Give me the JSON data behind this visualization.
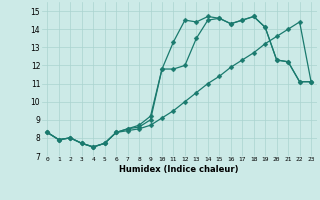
{
  "xlabel": "Humidex (Indice chaleur)",
  "background_color": "#cceae7",
  "grid_color": "#aad4d0",
  "line_color": "#1a7a6e",
  "xlim": [
    -0.5,
    23.5
  ],
  "ylim": [
    7.0,
    15.5
  ],
  "yticks": [
    7,
    8,
    9,
    10,
    11,
    12,
    13,
    14,
    15
  ],
  "xticks": [
    0,
    1,
    2,
    3,
    4,
    5,
    6,
    7,
    8,
    9,
    10,
    11,
    12,
    13,
    14,
    15,
    16,
    17,
    18,
    19,
    20,
    21,
    22,
    23
  ],
  "line1_x": [
    0,
    1,
    2,
    3,
    4,
    5,
    6,
    7,
    8,
    9,
    10,
    11,
    12,
    13,
    14,
    15,
    16,
    17,
    18,
    19,
    20,
    21,
    22,
    23
  ],
  "line1_y": [
    8.3,
    7.9,
    8.0,
    7.7,
    7.5,
    7.7,
    8.3,
    8.5,
    8.6,
    9.0,
    11.8,
    13.3,
    14.5,
    14.4,
    14.7,
    14.6,
    14.3,
    14.5,
    14.7,
    14.1,
    12.3,
    12.2,
    11.1,
    11.1
  ],
  "line2_x": [
    0,
    1,
    2,
    3,
    4,
    5,
    6,
    7,
    8,
    9,
    10,
    11,
    12,
    13,
    14,
    15,
    16,
    17,
    18,
    19,
    20,
    21,
    22,
    23
  ],
  "line2_y": [
    8.3,
    7.9,
    8.0,
    7.7,
    7.5,
    7.7,
    8.3,
    8.5,
    8.7,
    9.2,
    11.8,
    11.8,
    12.0,
    13.5,
    14.5,
    14.6,
    14.3,
    14.5,
    14.7,
    14.1,
    12.3,
    12.2,
    11.1,
    11.1
  ],
  "line3_x": [
    0,
    1,
    2,
    3,
    4,
    5,
    6,
    7,
    8,
    9,
    10,
    11,
    12,
    13,
    14,
    15,
    16,
    17,
    18,
    19,
    20,
    21,
    22,
    23
  ],
  "line3_y": [
    8.3,
    7.9,
    8.0,
    7.7,
    7.5,
    7.7,
    8.3,
    8.4,
    8.5,
    8.7,
    9.1,
    9.5,
    10.0,
    10.5,
    11.0,
    11.4,
    11.9,
    12.3,
    12.7,
    13.2,
    13.6,
    14.0,
    14.4,
    11.1
  ]
}
